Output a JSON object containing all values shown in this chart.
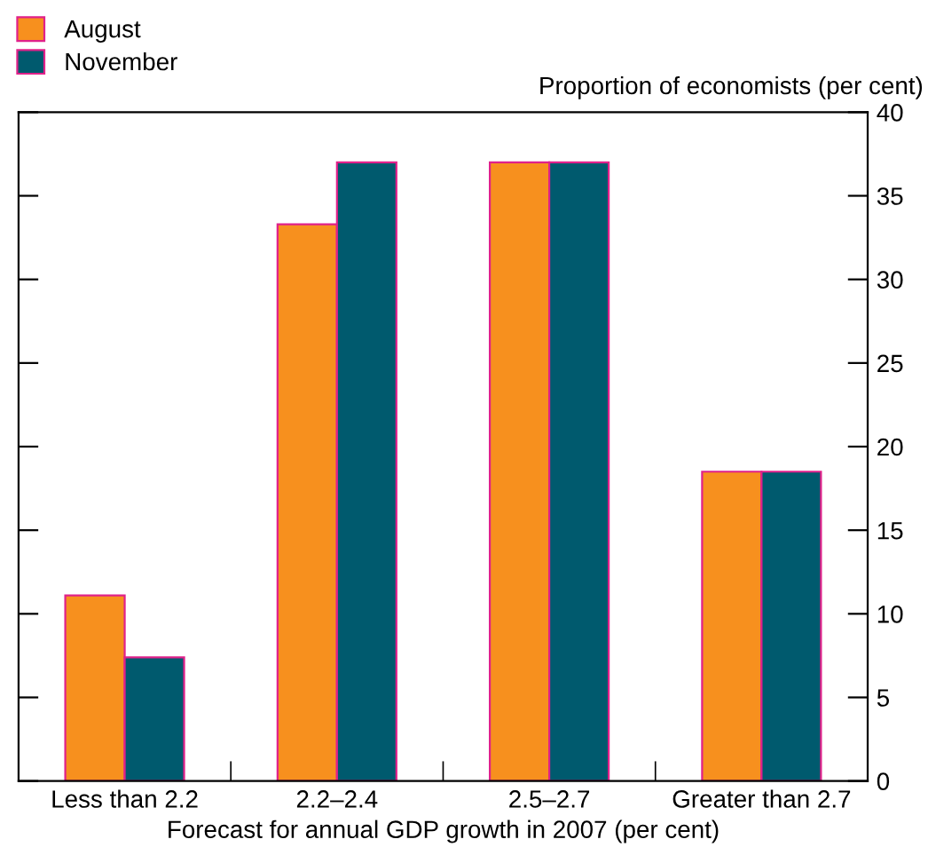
{
  "chart_data": {
    "type": "bar",
    "xlabel": "Forecast for annual GDP growth in 2007 (per cent)",
    "ylabel": "Proportion of economists (per cent)",
    "categories": [
      "Less than 2.2",
      "2.2–2.4",
      "2.5–2.7",
      "Greater than 2.7"
    ],
    "series": [
      {
        "name": "August",
        "color": "#f7901e",
        "values": [
          11.1,
          33.3,
          37.0,
          18.5
        ]
      },
      {
        "name": "November",
        "color": "#005a6e",
        "values": [
          7.4,
          37.0,
          37.0,
          18.5
        ]
      }
    ],
    "ylim": [
      0,
      40
    ],
    "yticks": [
      0,
      5,
      10,
      15,
      20,
      25,
      30,
      35,
      40
    ],
    "grid": false,
    "legend": "top left"
  }
}
